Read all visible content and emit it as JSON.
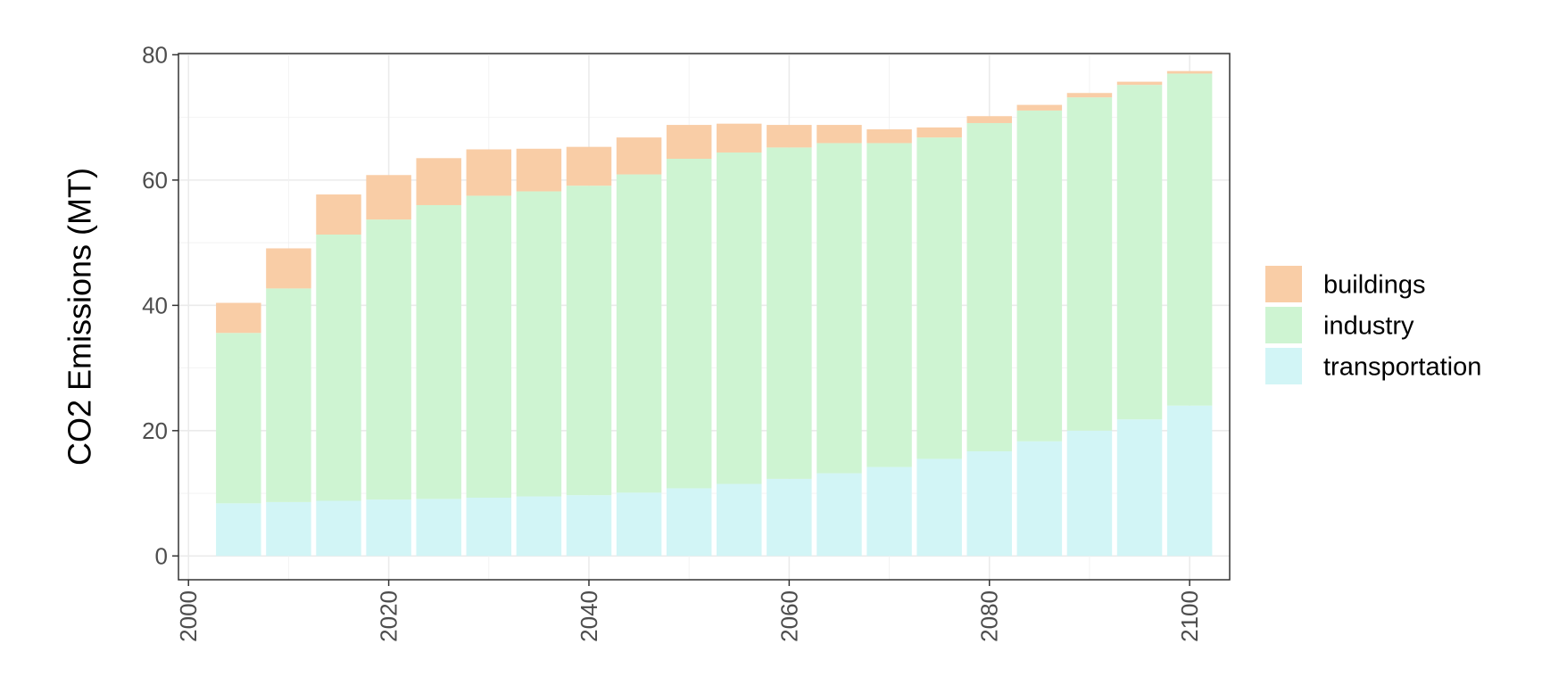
{
  "chart_data": {
    "type": "bar",
    "stacked": true,
    "title": "",
    "xlabel": "",
    "ylabel": "CO2 Emissions (MT)",
    "xlim": [
      1999,
      2104
    ],
    "ylim": [
      -3.8,
      80.2
    ],
    "x_ticks": [
      2000,
      2020,
      2040,
      2060,
      2080,
      2100
    ],
    "y_ticks": [
      0,
      20,
      40,
      60,
      80
    ],
    "x_tick_orientation": "vertical",
    "grid": true,
    "legend_position": "right",
    "legend_order": [
      "buildings",
      "industry",
      "transportation"
    ],
    "x": [
      2005,
      2010,
      2015,
      2020,
      2025,
      2030,
      2035,
      2040,
      2045,
      2050,
      2055,
      2060,
      2065,
      2070,
      2075,
      2080,
      2085,
      2090,
      2095,
      2100
    ],
    "series": [
      {
        "name": "transportation",
        "color": "#D2F5F6",
        "values": [
          8.4,
          8.6,
          8.8,
          9.0,
          9.1,
          9.3,
          9.5,
          9.7,
          10.1,
          10.8,
          11.5,
          12.3,
          13.2,
          14.2,
          15.5,
          16.7,
          18.3,
          20.0,
          21.8,
          24.0
        ]
      },
      {
        "name": "industry",
        "color": "#CEF4D2",
        "values": [
          27.2,
          34.1,
          42.5,
          44.7,
          46.9,
          48.2,
          48.7,
          49.4,
          50.8,
          52.6,
          52.9,
          52.9,
          52.7,
          51.7,
          51.3,
          52.4,
          52.8,
          53.2,
          53.4,
          53.0
        ]
      },
      {
        "name": "buildings",
        "color": "#F9CDA6",
        "values": [
          4.8,
          6.4,
          6.4,
          7.1,
          7.5,
          7.4,
          6.8,
          6.2,
          5.9,
          5.4,
          4.6,
          3.6,
          2.9,
          2.2,
          1.6,
          1.1,
          0.9,
          0.7,
          0.5,
          0.4
        ]
      }
    ]
  }
}
